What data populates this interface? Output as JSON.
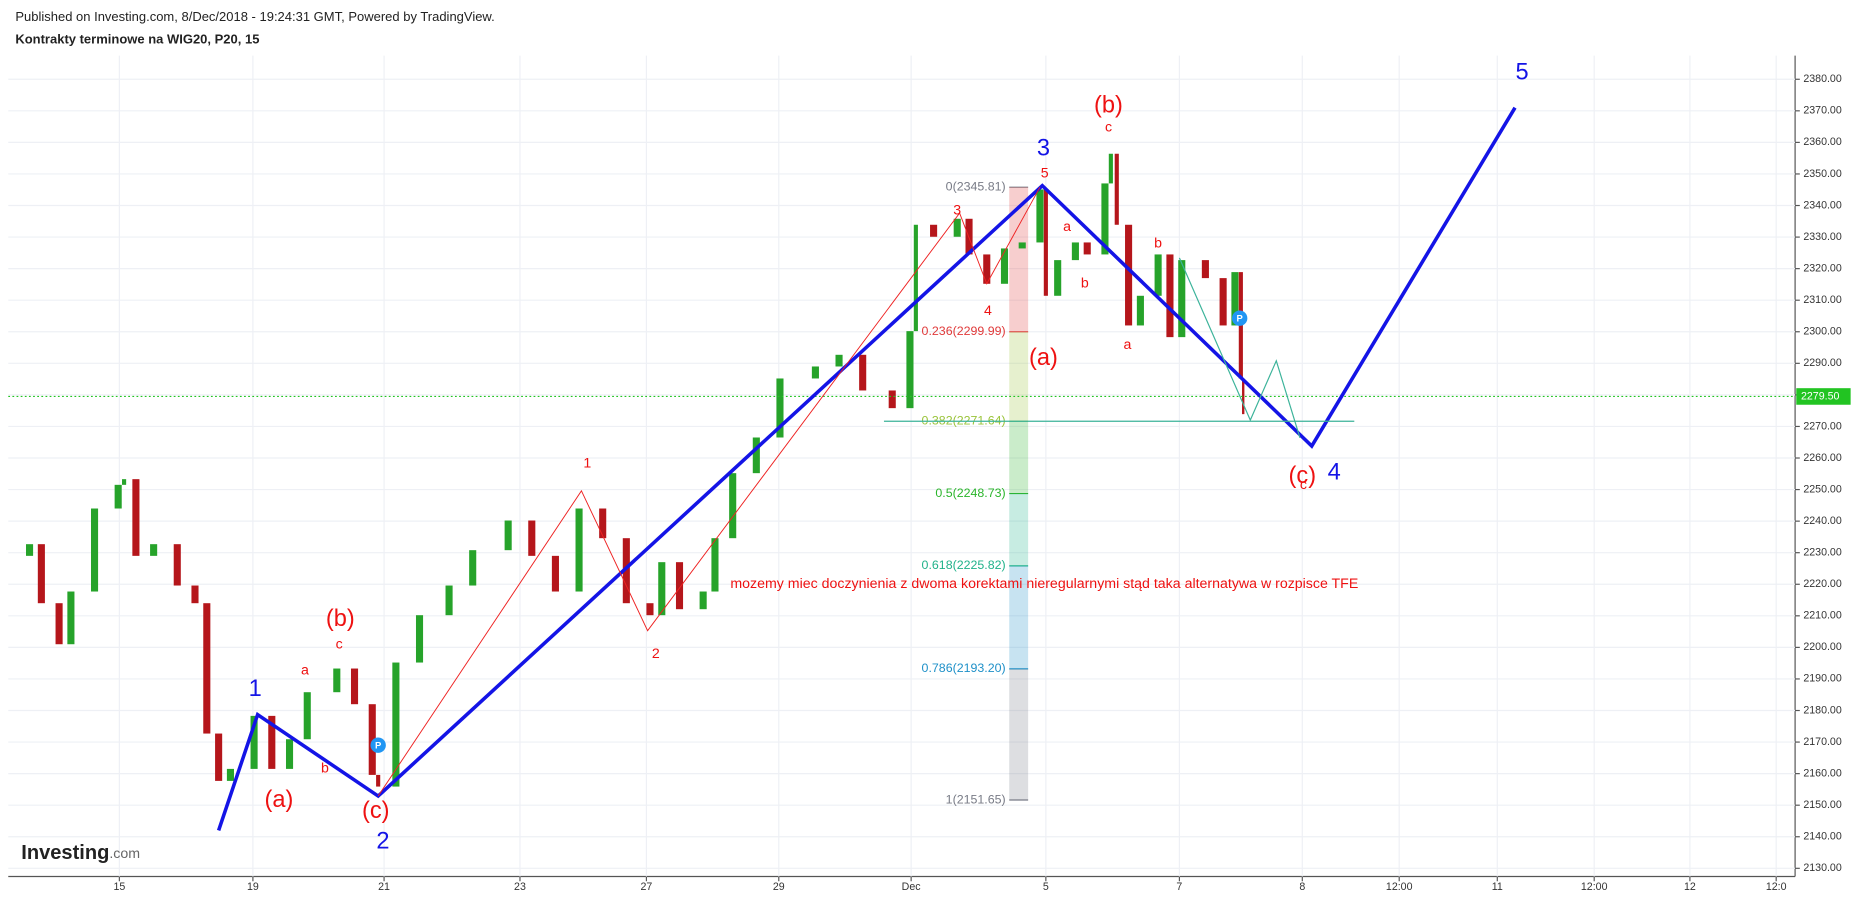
{
  "header": {
    "published": "Published on Investing.com, 8/Dec/2018 - 19:24:31 GMT, Powered by TradingView.",
    "title": "Kontrakty terminowe na WIG20, P20, 15"
  },
  "logo": {
    "name": "Investing",
    "suffix": ".com"
  },
  "chart_data": {
    "type": "candles",
    "x": [
      0,
      4.5,
      7,
      10.75,
      13.25,
      18.25,
      23.25,
      24.5,
      27,
      30.75,
      35.75,
      39.5,
      42,
      44.5,
      47,
      52,
      55.75,
      59.5,
      63.25,
      69.5,
      73.25,
      77,
      78.25,
      82,
      87,
      93.25,
      98.25,
      105.75,
      110.75,
      115.75,
      120.75,
      125.75,
      130.75,
      135.75,
      138.25,
      142,
      147,
      149.5,
      153.25,
      158.25,
      163.25,
      170.75,
      175.75,
      180.75,
      187,
      190.75,
      192,
      195.75,
      200.75,
      203.25,
      207,
      210.75,
      214.5,
      218.25,
      219.5,
      222,
      225.75,
      228.25,
      232,
      233.25,
      234.5,
      237,
      239.5,
      243.25,
      245.75,
      248.25,
      253.25,
      257,
      259.5,
      260.75,
      261.25
    ],
    "values": [
      2229,
      2232.7,
      2214,
      2201,
      2217.7,
      2244,
      2251.5,
      2253.3,
      2229,
      2232.7,
      2219.6,
      2214,
      2172.7,
      2157.7,
      2161.5,
      2178.3,
      2161.5,
      2170.9,
      2185.8,
      2193.3,
      2182,
      2159.6,
      2155.9,
      2195.2,
      2210.2,
      2219.6,
      2230.8,
      2240.2,
      2229,
      2217.7,
      2244,
      2234.6,
      2214,
      2210.2,
      2227,
      2212.1,
      2217.7,
      2234.6,
      2255.2,
      2266.5,
      2285.2,
      2289,
      2292.7,
      2281.4,
      2275.8,
      2300.2,
      2333.9,
      2330.1,
      2335.8,
      2324.5,
      2315.2,
      2326.4,
      2328.3,
      2345.1,
      2311.4,
      2322.7,
      2328.3,
      2324.5,
      2347,
      2356.4,
      2333.9,
      2302,
      2311.4,
      2324.5,
      2298.3,
      2322.7,
      2317,
      2302,
      2318.9,
      2285.2,
      2273.9
    ],
    "up_color": "#26a32a",
    "down_color": "#b5161b",
    "xlim": [
      0,
      378
    ],
    "ylim": [
      2127.4,
      2387.5
    ],
    "xticks": [
      {
        "value": 23.5,
        "label": "15"
      },
      {
        "value": 51.75,
        "label": "19"
      },
      {
        "value": 79.5,
        "label": "21"
      },
      {
        "value": 108.25,
        "label": "23"
      },
      {
        "value": 135,
        "label": "27"
      },
      {
        "value": 163,
        "label": "29"
      },
      {
        "value": 191,
        "label": "Dec"
      },
      {
        "value": 219.5,
        "label": "5"
      },
      {
        "value": 247.75,
        "label": "7"
      },
      {
        "value": 273.75,
        "label": "8"
      },
      {
        "value": 294.25,
        "label": "12:00"
      },
      {
        "value": 315,
        "label": "11"
      },
      {
        "value": 335.5,
        "label": "12:00"
      },
      {
        "value": 355.75,
        "label": "12"
      },
      {
        "value": 374,
        "label": "12:0"
      }
    ],
    "yticks": [
      {
        "value": 2130,
        "label": "2130.00"
      },
      {
        "value": 2140,
        "label": "2140.00"
      },
      {
        "value": 2150,
        "label": "2150.00"
      },
      {
        "value": 2160,
        "label": "2160.00"
      },
      {
        "value": 2170,
        "label": "2170.00"
      },
      {
        "value": 2180,
        "label": "2180.00"
      },
      {
        "value": 2190,
        "label": "2190.00"
      },
      {
        "value": 2200,
        "label": "2200.00"
      },
      {
        "value": 2210,
        "label": "2210.00"
      },
      {
        "value": 2220,
        "label": "2220.00"
      },
      {
        "value": 2230,
        "label": "2230.00"
      },
      {
        "value": 2240,
        "label": "2240.00"
      },
      {
        "value": 2250,
        "label": "2250.00"
      },
      {
        "value": 2260,
        "label": "2260.00"
      },
      {
        "value": 2270,
        "label": "2270.00"
      },
      {
        "value": 2280,
        "label": "2280.00"
      },
      {
        "value": 2290,
        "label": "2290.00"
      },
      {
        "value": 2300,
        "label": "2300.00"
      },
      {
        "value": 2310,
        "label": "2310.00"
      },
      {
        "value": 2320,
        "label": "2320.00"
      },
      {
        "value": 2330,
        "label": "2330.00"
      },
      {
        "value": 2340,
        "label": "2340.00"
      },
      {
        "value": 2350,
        "label": "2350.00"
      },
      {
        "value": 2360,
        "label": "2360.00"
      },
      {
        "value": 2370,
        "label": "2370.00"
      },
      {
        "value": 2380,
        "label": "2380.00"
      }
    ],
    "grid": true,
    "last_price": {
      "value": 2279.5,
      "label": "2279.50",
      "color": "#22c422"
    },
    "overlays": [
      {
        "color": "#1414e6",
        "width": 3,
        "x": [
          44.5,
          52.75,
          78.25,
          218.75,
          275.75,
          318.75
        ],
        "y": [
          2142,
          2178.7,
          2152.9,
          2346.3,
          2263.8,
          2371
        ]
      },
      {
        "color": "#ee2222",
        "width": 0.8,
        "x": [
          78.25,
          121.25,
          135.25,
          201.25,
          207,
          218.25
        ],
        "y": [
          2152.9,
          2249.6,
          2205.3,
          2337.6,
          2315.2,
          2345.81
        ]
      },
      {
        "color": "#3cb39a",
        "width": 1,
        "x": [
          185.25,
          284.75
        ],
        "y": [
          2271.64,
          2271.64
        ]
      },
      {
        "color": "#3cb39a",
        "width": 1,
        "x": [
          247.75,
          262.75,
          268.25,
          273.25
        ],
        "y": [
          2323.4,
          2272,
          2290.8,
          2266.4
        ]
      }
    ],
    "fib": {
      "x": [
        211.75,
        215.75
      ],
      "levels": [
        {
          "label": "0(2345.81)",
          "value": 2345.81,
          "color": "#787b86"
        },
        {
          "label": "0.236(2299.99)",
          "value": 2299.99,
          "color": "#e03a3a"
        },
        {
          "label": "0.382(2271.64)",
          "value": 2271.64,
          "color": "#9ac43a"
        },
        {
          "label": "0.5(2248.73)",
          "value": 2248.73,
          "color": "#2bb52b"
        },
        {
          "label": "0.618(2225.82)",
          "value": 2225.82,
          "color": "#20b28a"
        },
        {
          "label": "0.786(2193.20)",
          "value": 2193.2,
          "color": "#1e90c8"
        },
        {
          "label": "1(2151.65)",
          "value": 2151.65,
          "color": "#787b86"
        }
      ]
    },
    "wave_labels": [
      {
        "text": "1",
        "x": 52.25,
        "y": 2186.6,
        "color": "#1414e6"
      },
      {
        "text": "2",
        "x": 79.25,
        "y": 2138.2,
        "color": "#1414e6"
      },
      {
        "text": "3",
        "x": 219,
        "y": 2357.9,
        "color": "#1414e6"
      },
      {
        "text": "4",
        "x": 280.5,
        "y": 2255.2,
        "color": "#1414e6"
      },
      {
        "text": "5",
        "x": 320.25,
        "y": 2381.9,
        "color": "#1414e6"
      },
      {
        "text": "(a)",
        "x": 57.25,
        "y": 2151.4,
        "color": "#ee1111"
      },
      {
        "text": "(b)",
        "x": 70.25,
        "y": 2208.7,
        "color": "#ee1111"
      },
      {
        "text": "(c)",
        "x": 77.75,
        "y": 2148,
        "color": "#ee1111"
      },
      {
        "text": "(a)",
        "x": 219,
        "y": 2291.5,
        "color": "#ee1111"
      },
      {
        "text": "(b)",
        "x": 232.75,
        "y": 2371.4,
        "color": "#ee1111"
      },
      {
        "text": "(c)",
        "x": 273.75,
        "y": 2254.1,
        "color": "#ee1111"
      }
    ],
    "subwave_labels": [
      {
        "text": "c",
        "x": 70,
        "y": 2200.8
      },
      {
        "text": "a",
        "x": 62.75,
        "y": 2192.6
      },
      {
        "text": "b",
        "x": 67,
        "y": 2161.5
      },
      {
        "text": "1",
        "x": 122.5,
        "y": 2258.2
      },
      {
        "text": "2",
        "x": 137,
        "y": 2197.8
      },
      {
        "text": "3",
        "x": 200.75,
        "y": 2338.4
      },
      {
        "text": "4",
        "x": 207.25,
        "y": 2306.5
      },
      {
        "text": "5",
        "x": 219.25,
        "y": 2350
      },
      {
        "text": "a",
        "x": 224,
        "y": 2333.1
      },
      {
        "text": "b",
        "x": 227.75,
        "y": 2315.2
      },
      {
        "text": "c",
        "x": 232.75,
        "y": 2364.6
      },
      {
        "text": "b",
        "x": 243.25,
        "y": 2327.9
      },
      {
        "text": "a",
        "x": 236.75,
        "y": 2295.7
      },
      {
        "text": "c",
        "x": 274,
        "y": 2251.4
      }
    ],
    "subwave_color": "#ee1111",
    "comment": {
      "text": "mozemy miec doczynienia z dwoma korektami nieregularnymi stąd taka alternatywa w rozpisce TFE",
      "x": 152.75,
      "y": 2220,
      "color": "#ee1111"
    },
    "markers": [
      {
        "text": "P",
        "x": 78.25,
        "y": 2169
      },
      {
        "text": "P",
        "x": 260.5,
        "y": 2304.3
      }
    ],
    "marker_color": "#2196f3"
  }
}
